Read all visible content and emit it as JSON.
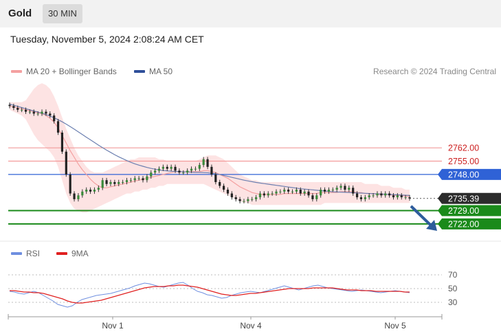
{
  "header": {
    "instrument": "Gold",
    "timeframe": "30 MIN"
  },
  "datetime": "Tuesday, November 5, 2024 2:08:24 AM CET",
  "legend": {
    "ma20_label": "MA 20 + Bollinger Bands",
    "ma50_label": "MA 50",
    "rsi_label": "RSI",
    "ma9_label": "9MA"
  },
  "copyright": "Research © 2024 Trading Central",
  "colors": {
    "ma20": "#f4a0a0",
    "bollinger_fill": "#fde0e0",
    "ma50": "#6b7fb0",
    "resistance": "#f29a9a",
    "pivot": "#2f62d6",
    "support": "#1a8a1a",
    "current": "#2b2b2b",
    "arrow": "#2d5c9c",
    "rsi": "#6f8fe0",
    "rsi_ma": "#e02020",
    "candle_up": "#3a8a3a",
    "candle_down": "#222222"
  },
  "chart_data": [
    {
      "type": "candlestick",
      "title": "Gold",
      "timeframe": "30 MIN",
      "x_ticks": [
        "Nov 1",
        "Nov 4",
        "Nov 5"
      ],
      "ylim": [
        2714,
        2800
      ],
      "levels": [
        {
          "label": "2762.00",
          "value": 2762.0,
          "kind": "resistance"
        },
        {
          "label": "2755.00",
          "value": 2755.0,
          "kind": "resistance"
        },
        {
          "label": "2748.00",
          "value": 2748.0,
          "kind": "pivot"
        },
        {
          "label": "2735.39",
          "value": 2735.39,
          "kind": "current"
        },
        {
          "label": "2729.00",
          "value": 2729.0,
          "kind": "support"
        },
        {
          "label": "2722.00",
          "value": 2722.0,
          "kind": "support"
        }
      ],
      "close": [
        2784,
        2783,
        2782,
        2782,
        2781,
        2781,
        2780,
        2780,
        2781,
        2780,
        2779,
        2776,
        2770,
        2760,
        2748,
        2738,
        2735,
        2737,
        2739,
        2740,
        2739,
        2740,
        2741,
        2745,
        2743,
        2744,
        2743,
        2744,
        2744,
        2745,
        2745,
        2746,
        2746,
        2745,
        2747,
        2749,
        2750,
        2751,
        2752,
        2751,
        2752,
        2750,
        2749,
        2749,
        2750,
        2751,
        2751,
        2753,
        2756,
        2752,
        2748,
        2744,
        2742,
        2740,
        2738,
        2736,
        2735,
        2734,
        2734,
        2735,
        2735,
        2736,
        2738,
        2737,
        2738,
        2738,
        2739,
        2739,
        2740,
        2739,
        2739,
        2740,
        2738,
        2739,
        2737,
        2735,
        2737,
        2740,
        2739,
        2740,
        2740,
        2741,
        2742,
        2740,
        2741,
        2738,
        2736,
        2735,
        2736,
        2737,
        2737,
        2738,
        2737,
        2738,
        2737,
        2736,
        2737,
        2736,
        2736,
        2735.39
      ],
      "ma20": [
        2784,
        2783.5,
        2783,
        2782.5,
        2782,
        2781.5,
        2781,
        2780.5,
        2780,
        2779,
        2777.5,
        2775.5,
        2772.5,
        2768.5,
        2764.5,
        2760.5,
        2757,
        2753.5,
        2750.5,
        2748,
        2745.5,
        2743.5,
        2742,
        2741,
        2741,
        2741.5,
        2742,
        2742.5,
        2743,
        2743.5,
        2744,
        2744.5,
        2745,
        2745.5,
        2746,
        2746.5,
        2747,
        2747.5,
        2748,
        2748.5,
        2749,
        2749.5,
        2749.5,
        2749.5,
        2749.5,
        2749.5,
        2749.5,
        2749.5,
        2750,
        2750,
        2749.5,
        2749,
        2748,
        2747,
        2746,
        2744.5,
        2743,
        2741.5,
        2740.5,
        2739.5,
        2738.5,
        2738,
        2737.5,
        2737.5,
        2737.5,
        2737.5,
        2737.5,
        2737.5,
        2738,
        2738,
        2738,
        2738,
        2738,
        2738,
        2738,
        2738,
        2738,
        2738.5,
        2738.5,
        2738.5,
        2738.5,
        2738.5,
        2739,
        2739,
        2739,
        2739,
        2738.5,
        2738.5,
        2738,
        2738,
        2738,
        2737.5,
        2737.5,
        2737.5,
        2737.5,
        2737,
        2737,
        2737,
        2736.5,
        2736.5
      ],
      "ma50": [
        2785,
        2784.4,
        2783.8,
        2783.2,
        2782.6,
        2782,
        2781.4,
        2780.8,
        2780.2,
        2779.5,
        2778.7,
        2777.8,
        2776.8,
        2775.7,
        2774.5,
        2773.2,
        2771.8,
        2770.4,
        2769,
        2767.6,
        2766.2,
        2764.8,
        2763.4,
        2762.1,
        2760.8,
        2759.6,
        2758.4,
        2757.3,
        2756.3,
        2755.3,
        2754.4,
        2753.6,
        2752.9,
        2752.3,
        2751.7,
        2751.2,
        2750.8,
        2750.4,
        2750.1,
        2749.9,
        2749.7,
        2749.6,
        2749.5,
        2749.4,
        2749.3,
        2749.2,
        2749.1,
        2749.1,
        2749,
        2748.9,
        2748.7,
        2748.4,
        2748,
        2747.5,
        2747,
        2746.5,
        2746,
        2745.5,
        2745,
        2744.6,
        2744.2,
        2743.8,
        2743.5,
        2743.2,
        2742.9,
        2742.6,
        2742.3,
        2742,
        2741.7,
        2741.4,
        2741.1,
        2740.8,
        2740.5,
        2740.3,
        2740.1,
        2739.9,
        2739.7,
        2739.5,
        2739.3,
        2739.1,
        2738.9,
        2738.8,
        2738.7,
        2738.6,
        2738.5,
        2738.4,
        2738.3,
        2738.2,
        2738.1,
        2738,
        2737.9,
        2737.8,
        2737.7,
        2737.6,
        2737.5,
        2737.4,
        2737.3,
        2737.2,
        2737.1,
        2737
      ],
      "bb_upper": [
        2786,
        2786,
        2786,
        2786,
        2787,
        2790,
        2793,
        2795,
        2796,
        2795,
        2793,
        2789,
        2784,
        2778,
        2772,
        2767,
        2762,
        2758,
        2755,
        2752,
        2750,
        2749,
        2749,
        2749,
        2750,
        2751,
        2752,
        2753,
        2754,
        2755,
        2756,
        2756,
        2757,
        2757,
        2757,
        2757,
        2757,
        2756,
        2756,
        2755,
        2755,
        2755,
        2755,
        2755,
        2755,
        2755,
        2755,
        2756,
        2757,
        2758,
        2758,
        2758,
        2757,
        2756,
        2754,
        2752,
        2750,
        2748,
        2747,
        2746,
        2745,
        2745,
        2744,
        2744,
        2744,
        2744,
        2744,
        2744,
        2744,
        2744,
        2744,
        2744,
        2744,
        2744,
        2744,
        2744,
        2744,
        2744,
        2744,
        2744,
        2744,
        2744,
        2744,
        2744,
        2744,
        2744,
        2744,
        2744,
        2743,
        2743,
        2743,
        2743,
        2742,
        2742,
        2742,
        2741,
        2741,
        2741,
        2740,
        2740
      ],
      "bb_lower": [
        2782,
        2781,
        2780,
        2779,
        2777,
        2773,
        2769,
        2766,
        2764,
        2762,
        2760,
        2757,
        2752,
        2745,
        2738,
        2733,
        2730,
        2729,
        2728,
        2728,
        2729,
        2730,
        2731,
        2732,
        2733,
        2734,
        2735,
        2736,
        2737,
        2738,
        2738,
        2739,
        2739,
        2740,
        2740,
        2741,
        2741,
        2742,
        2742,
        2743,
        2743,
        2743,
        2743,
        2743,
        2743,
        2743,
        2743,
        2743,
        2743,
        2742,
        2741,
        2740,
        2739,
        2738,
        2737,
        2736,
        2735,
        2734,
        2733,
        2733,
        2732,
        2732,
        2732,
        2732,
        2732,
        2732,
        2732,
        2732,
        2732,
        2732,
        2732,
        2732,
        2732,
        2732,
        2732,
        2732,
        2732,
        2732,
        2733,
        2733,
        2733,
        2733,
        2733,
        2733,
        2733,
        2733,
        2733,
        2733,
        2733,
        2733,
        2733,
        2733,
        2733,
        2733,
        2733,
        2733,
        2733,
        2733,
        2733,
        2733
      ]
    },
    {
      "type": "line",
      "series": [
        {
          "name": "RSI",
          "values": [
            46,
            45,
            43,
            42,
            44,
            46,
            44,
            40,
            36,
            32,
            27,
            25,
            23,
            25,
            30,
            34,
            36,
            38,
            40,
            41,
            42,
            43,
            45,
            47,
            49,
            51,
            54,
            56,
            58,
            57,
            55,
            53,
            52,
            54,
            56,
            58,
            59,
            55,
            50,
            46,
            44,
            41,
            40,
            38,
            36,
            37,
            40,
            42,
            44,
            45,
            46,
            45,
            44,
            46,
            48,
            50,
            52,
            54,
            52,
            50,
            48,
            50,
            52,
            54,
            55,
            53,
            51,
            50,
            49,
            48,
            47,
            46,
            47,
            48,
            47,
            46,
            45,
            44,
            45,
            46,
            47,
            46,
            45,
            44
          ]
        },
        {
          "name": "9MA",
          "values": [
            47,
            47,
            46,
            45,
            45,
            44,
            44,
            43,
            41,
            39,
            37,
            35,
            32,
            30,
            29,
            29,
            30,
            31,
            32,
            33,
            35,
            37,
            39,
            41,
            43,
            45,
            47,
            49,
            51,
            52,
            53,
            53,
            53,
            54,
            54,
            55,
            55,
            54,
            53,
            52,
            50,
            48,
            46,
            44,
            42,
            41,
            40,
            40,
            41,
            42,
            43,
            43,
            44,
            45,
            46,
            47,
            48,
            49,
            50,
            50,
            50,
            50,
            50,
            51,
            51,
            51,
            51,
            51,
            50,
            49,
            48,
            48,
            48,
            47,
            47,
            47,
            46,
            46,
            46,
            46,
            46,
            46,
            45,
            45
          ]
        }
      ],
      "yticks": [
        "70",
        "50",
        "30"
      ],
      "ylim": [
        10,
        90
      ]
    }
  ]
}
